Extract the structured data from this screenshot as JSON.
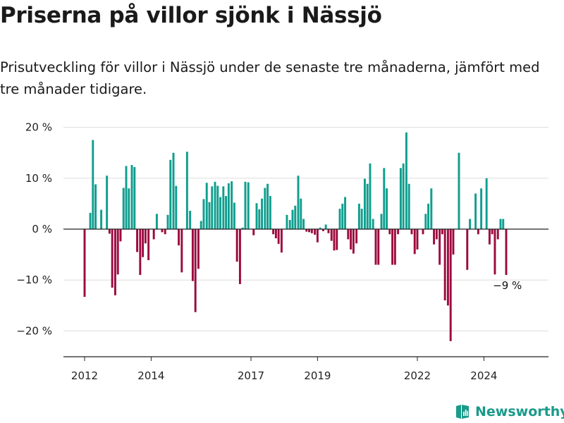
{
  "header": {
    "title": "Priserna på villor sjönk i Nässjö",
    "subtitle": "Prisutveckling för villor i Nässjö under de senaste tre månaderna, jämfört med tre månader tidigare."
  },
  "brand": {
    "name": "Newsworthy"
  },
  "colors": {
    "positive": "#0f9e8e",
    "negative": "#9c0a3e",
    "grid": "#dddddd",
    "axis": "#222222",
    "brand": "#1a9a8a"
  },
  "chart_data": {
    "type": "bar",
    "title": "",
    "xlabel": "",
    "ylabel": "",
    "ylim": [
      -25,
      20
    ],
    "y_ticks": [
      {
        "value": 20,
        "label": "20 %"
      },
      {
        "value": 10,
        "label": "10 %"
      },
      {
        "value": 0,
        "label": "0 %"
      },
      {
        "value": -10,
        "label": "−10 %"
      },
      {
        "value": -20,
        "label": "−20 %"
      }
    ],
    "x_ticks": [
      {
        "value": 2012.0,
        "label": "2012"
      },
      {
        "value": 2014.0,
        "label": "2014"
      },
      {
        "value": 2017.0,
        "label": "2017"
      },
      {
        "value": 2019.0,
        "label": "2019"
      },
      {
        "value": 2022.0,
        "label": "2022"
      },
      {
        "value": 2024.0,
        "label": "2024"
      }
    ],
    "annotations": [
      {
        "text": "−9 %",
        "x": 2024.58,
        "y": -9
      }
    ],
    "bars": [
      {
        "x": 2012.0,
        "y": -13.3
      },
      {
        "x": 2012.17,
        "y": 3.2
      },
      {
        "x": 2012.25,
        "y": 17.5
      },
      {
        "x": 2012.33,
        "y": 8.8
      },
      {
        "x": 2012.5,
        "y": 3.8
      },
      {
        "x": 2012.67,
        "y": 10.5
      },
      {
        "x": 2012.75,
        "y": -0.9
      },
      {
        "x": 2012.83,
        "y": -11.5
      },
      {
        "x": 2012.92,
        "y": -13.0
      },
      {
        "x": 2013.0,
        "y": -8.9
      },
      {
        "x": 2013.08,
        "y": -2.4
      },
      {
        "x": 2013.17,
        "y": 8.1
      },
      {
        "x": 2013.25,
        "y": 12.4
      },
      {
        "x": 2013.33,
        "y": 8.0
      },
      {
        "x": 2013.42,
        "y": 12.6
      },
      {
        "x": 2013.5,
        "y": 12.2
      },
      {
        "x": 2013.58,
        "y": -4.5
      },
      {
        "x": 2013.67,
        "y": -9.0
      },
      {
        "x": 2013.75,
        "y": -5.5
      },
      {
        "x": 2013.83,
        "y": -2.8
      },
      {
        "x": 2013.92,
        "y": -6.1
      },
      {
        "x": 2014.08,
        "y": -2.0
      },
      {
        "x": 2014.17,
        "y": 3.0
      },
      {
        "x": 2014.33,
        "y": -0.6
      },
      {
        "x": 2014.42,
        "y": -1.0
      },
      {
        "x": 2014.5,
        "y": 2.8
      },
      {
        "x": 2014.58,
        "y": 13.6
      },
      {
        "x": 2014.67,
        "y": 15.0
      },
      {
        "x": 2014.75,
        "y": 8.5
      },
      {
        "x": 2014.83,
        "y": -3.2
      },
      {
        "x": 2014.92,
        "y": -8.5
      },
      {
        "x": 2015.08,
        "y": 15.2
      },
      {
        "x": 2015.17,
        "y": 3.6
      },
      {
        "x": 2015.25,
        "y": -10.2
      },
      {
        "x": 2015.33,
        "y": -16.3
      },
      {
        "x": 2015.42,
        "y": -7.8
      },
      {
        "x": 2015.5,
        "y": 1.6
      },
      {
        "x": 2015.58,
        "y": 5.9
      },
      {
        "x": 2015.67,
        "y": 9.1
      },
      {
        "x": 2015.75,
        "y": 5.3
      },
      {
        "x": 2015.83,
        "y": 8.4
      },
      {
        "x": 2015.92,
        "y": 9.3
      },
      {
        "x": 2016.0,
        "y": 8.5
      },
      {
        "x": 2016.08,
        "y": 6.3
      },
      {
        "x": 2016.17,
        "y": 8.4
      },
      {
        "x": 2016.25,
        "y": 6.5
      },
      {
        "x": 2016.33,
        "y": 9.0
      },
      {
        "x": 2016.42,
        "y": 9.4
      },
      {
        "x": 2016.5,
        "y": 5.2
      },
      {
        "x": 2016.58,
        "y": -6.4
      },
      {
        "x": 2016.67,
        "y": -10.8
      },
      {
        "x": 2016.75,
        "y": 0.3
      },
      {
        "x": 2016.83,
        "y": 9.3
      },
      {
        "x": 2016.92,
        "y": 9.2
      },
      {
        "x": 2017.08,
        "y": -1.2
      },
      {
        "x": 2017.17,
        "y": 5.1
      },
      {
        "x": 2017.25,
        "y": 3.9
      },
      {
        "x": 2017.33,
        "y": 6.0
      },
      {
        "x": 2017.42,
        "y": 8.1
      },
      {
        "x": 2017.5,
        "y": 8.9
      },
      {
        "x": 2017.58,
        "y": 6.5
      },
      {
        "x": 2017.67,
        "y": -1.0
      },
      {
        "x": 2017.75,
        "y": -1.8
      },
      {
        "x": 2017.83,
        "y": -2.9
      },
      {
        "x": 2017.92,
        "y": -4.6
      },
      {
        "x": 2018.08,
        "y": 2.8
      },
      {
        "x": 2018.17,
        "y": 1.8
      },
      {
        "x": 2018.25,
        "y": 3.8
      },
      {
        "x": 2018.33,
        "y": 4.6
      },
      {
        "x": 2018.42,
        "y": 10.5
      },
      {
        "x": 2018.5,
        "y": 6.0
      },
      {
        "x": 2018.58,
        "y": 2.0
      },
      {
        "x": 2018.67,
        "y": -0.5
      },
      {
        "x": 2018.75,
        "y": -0.6
      },
      {
        "x": 2018.83,
        "y": -0.8
      },
      {
        "x": 2018.92,
        "y": -1.1
      },
      {
        "x": 2019.0,
        "y": -2.6
      },
      {
        "x": 2019.08,
        "y": 0.3
      },
      {
        "x": 2019.17,
        "y": -0.4
      },
      {
        "x": 2019.25,
        "y": 0.9
      },
      {
        "x": 2019.33,
        "y": -0.8
      },
      {
        "x": 2019.42,
        "y": -2.3
      },
      {
        "x": 2019.5,
        "y": -4.2
      },
      {
        "x": 2019.58,
        "y": -4.1
      },
      {
        "x": 2019.67,
        "y": 4.0
      },
      {
        "x": 2019.75,
        "y": 5.0
      },
      {
        "x": 2019.83,
        "y": 6.3
      },
      {
        "x": 2019.92,
        "y": -2.0
      },
      {
        "x": 2020.0,
        "y": -4.0
      },
      {
        "x": 2020.08,
        "y": -4.8
      },
      {
        "x": 2020.17,
        "y": -2.8
      },
      {
        "x": 2020.25,
        "y": 5.0
      },
      {
        "x": 2020.33,
        "y": 4.0
      },
      {
        "x": 2020.42,
        "y": 9.9
      },
      {
        "x": 2020.5,
        "y": 8.9
      },
      {
        "x": 2020.58,
        "y": 12.9
      },
      {
        "x": 2020.67,
        "y": 2.0
      },
      {
        "x": 2020.75,
        "y": -7.0
      },
      {
        "x": 2020.83,
        "y": -7.0
      },
      {
        "x": 2020.92,
        "y": 3.0
      },
      {
        "x": 2021.0,
        "y": 12.0
      },
      {
        "x": 2021.08,
        "y": 8.0
      },
      {
        "x": 2021.17,
        "y": -1.0
      },
      {
        "x": 2021.25,
        "y": -7.0
      },
      {
        "x": 2021.33,
        "y": -7.0
      },
      {
        "x": 2021.42,
        "y": -1.0
      },
      {
        "x": 2021.5,
        "y": 12.0
      },
      {
        "x": 2021.58,
        "y": 12.9
      },
      {
        "x": 2021.67,
        "y": 19.0
      },
      {
        "x": 2021.75,
        "y": 8.9
      },
      {
        "x": 2021.83,
        "y": -1.0
      },
      {
        "x": 2021.92,
        "y": -4.9
      },
      {
        "x": 2022.0,
        "y": -4.0
      },
      {
        "x": 2022.08,
        "y": 0.0
      },
      {
        "x": 2022.17,
        "y": -1.0
      },
      {
        "x": 2022.25,
        "y": 3.0
      },
      {
        "x": 2022.33,
        "y": 5.0
      },
      {
        "x": 2022.42,
        "y": 8.0
      },
      {
        "x": 2022.5,
        "y": -3.0
      },
      {
        "x": 2022.58,
        "y": -2.0
      },
      {
        "x": 2022.67,
        "y": -7.0
      },
      {
        "x": 2022.75,
        "y": -1.0
      },
      {
        "x": 2022.83,
        "y": -14.0
      },
      {
        "x": 2022.92,
        "y": -15.0
      },
      {
        "x": 2023.0,
        "y": -22.0
      },
      {
        "x": 2023.08,
        "y": -5.0
      },
      {
        "x": 2023.25,
        "y": 15.0
      },
      {
        "x": 2023.5,
        "y": -8.0
      },
      {
        "x": 2023.58,
        "y": 2.0
      },
      {
        "x": 2023.75,
        "y": 7.0
      },
      {
        "x": 2023.83,
        "y": -1.0
      },
      {
        "x": 2023.92,
        "y": 8.0
      },
      {
        "x": 2024.08,
        "y": 10.0
      },
      {
        "x": 2024.17,
        "y": -3.0
      },
      {
        "x": 2024.25,
        "y": -1.0
      },
      {
        "x": 2024.33,
        "y": -8.9
      },
      {
        "x": 2024.42,
        "y": -2.0
      },
      {
        "x": 2024.5,
        "y": 2.0
      },
      {
        "x": 2024.58,
        "y": 2.0
      },
      {
        "x": 2024.67,
        "y": -9.0
      }
    ]
  }
}
